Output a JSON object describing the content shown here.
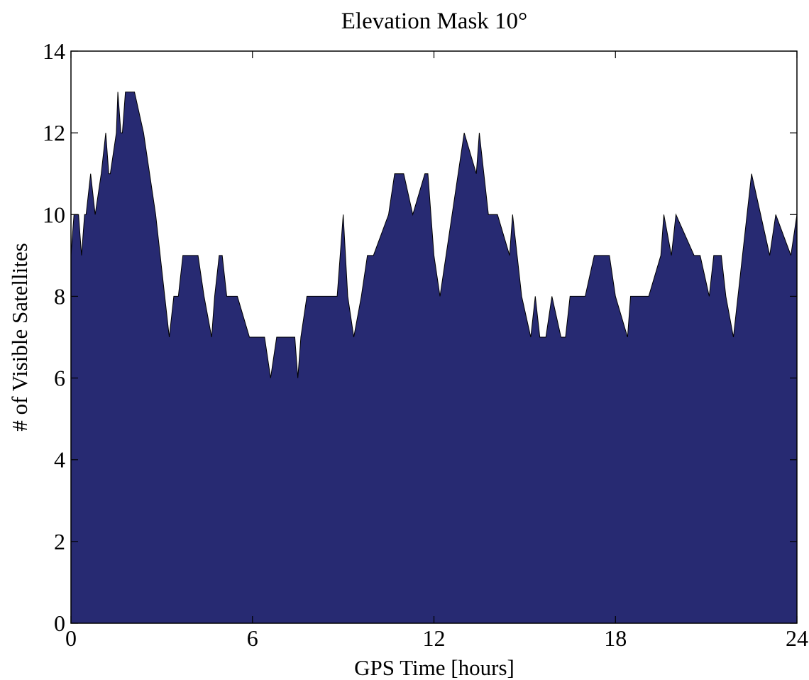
{
  "chart_data": {
    "type": "area",
    "title": "Elevation Mask 10°",
    "xlabel": "GPS Time [hours]",
    "ylabel": "# of Visible Satellites",
    "xlim": [
      0,
      24
    ],
    "ylim": [
      0,
      14
    ],
    "xticks": [
      0,
      6,
      12,
      18,
      24
    ],
    "yticks": [
      0,
      2,
      4,
      6,
      8,
      10,
      12,
      14
    ],
    "xtick_labels": [
      "0",
      "6",
      "12",
      "18",
      "24"
    ],
    "ytick_labels": [
      "0",
      "2",
      "4",
      "6",
      "8",
      "10",
      "12",
      "14"
    ],
    "grid": false,
    "fill_color": "#272a72",
    "x": [
      0,
      0.1,
      0.25,
      0.35,
      0.45,
      0.5,
      0.65,
      0.8,
      1.0,
      1.15,
      1.25,
      1.3,
      1.5,
      1.55,
      1.65,
      1.7,
      1.8,
      2.1,
      2.4,
      2.8,
      2.95,
      3.1,
      3.25,
      3.4,
      3.55,
      3.7,
      4.2,
      4.4,
      4.65,
      4.75,
      4.9,
      5.0,
      5.15,
      5.4,
      5.5,
      5.9,
      6.4,
      6.6,
      6.8,
      7.4,
      7.5,
      7.6,
      7.8,
      8.1,
      8.8,
      9.0,
      9.15,
      9.35,
      9.6,
      9.8,
      10.0,
      10.5,
      10.7,
      11.0,
      11.3,
      11.7,
      11.8,
      12.0,
      12.2,
      12.4,
      12.6,
      12.8,
      13.0,
      13.4,
      13.5,
      13.65,
      13.8,
      13.95,
      14.1,
      14.5,
      14.6,
      14.9,
      15.2,
      15.35,
      15.5,
      15.7,
      15.9,
      16.2,
      16.35,
      16.5,
      16.8,
      17.0,
      17.3,
      17.8,
      18.0,
      18.4,
      18.5,
      18.8,
      19.1,
      19.5,
      19.6,
      19.85,
      20.0,
      20.6,
      20.8,
      21.1,
      21.25,
      21.5,
      21.65,
      21.9,
      22.2,
      22.5,
      22.8,
      23.1,
      23.3,
      23.8,
      24.0
    ],
    "values": [
      9,
      10,
      10,
      9,
      10,
      10,
      11,
      10,
      11,
      12,
      11,
      11,
      12,
      13,
      12,
      12,
      13,
      13,
      12,
      10,
      9,
      8,
      7,
      8,
      8,
      9,
      9,
      8,
      7,
      8,
      9,
      9,
      8,
      8,
      8,
      7,
      7,
      6,
      7,
      7,
      6,
      7,
      8,
      8,
      8,
      10,
      8,
      7,
      8,
      9,
      9,
      10,
      11,
      11,
      10,
      11,
      11,
      9,
      8,
      9,
      10,
      11,
      12,
      11,
      12,
      11,
      10,
      10,
      10,
      9,
      10,
      8,
      7,
      8,
      7,
      7,
      8,
      7,
      7,
      8,
      8,
      8,
      9,
      9,
      8,
      7,
      8,
      8,
      8,
      9,
      10,
      9,
      10,
      9,
      9,
      8,
      9,
      9,
      8,
      7,
      9,
      11,
      10,
      9,
      10,
      9,
      10
    ]
  }
}
